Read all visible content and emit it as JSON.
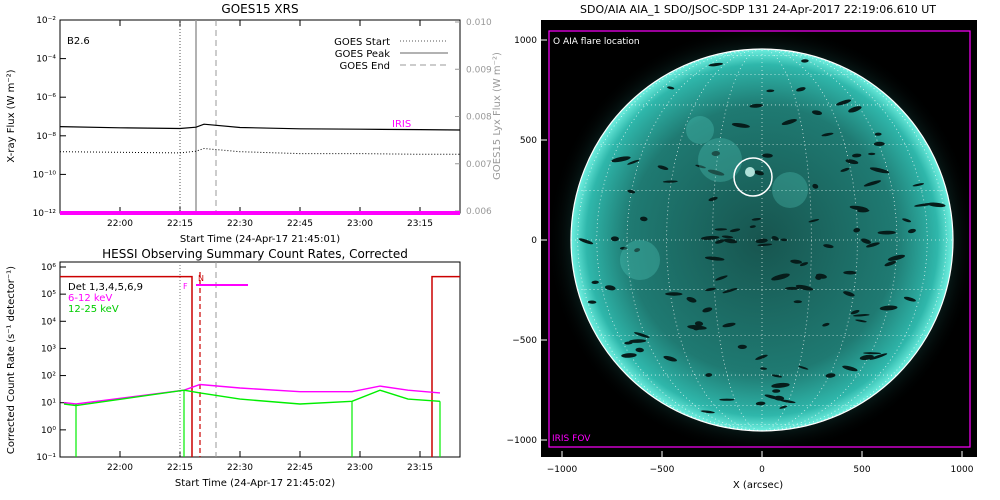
{
  "goes": {
    "title": "GOES15 XRS",
    "class_label": "B2.6",
    "ylabel": "X-ray Flux (W m⁻²)",
    "y2label": "GOES15 Lyx Flux (W m⁻²)",
    "xlabel": "Start Time (24-Apr-17 21:45:01)",
    "legend": [
      "GOES Start",
      "GOES Peak",
      "GOES End"
    ],
    "iris_label": "IRIS",
    "yticks": [
      "10⁻²",
      "10⁻⁴",
      "10⁻⁶",
      "10⁻⁸",
      "10⁻¹⁰",
      "10⁻¹²"
    ],
    "y2ticks": [
      "0.010",
      "0.009",
      "0.008",
      "0.007",
      "0.006"
    ],
    "xticks": [
      "22:00",
      "22:15",
      "22:30",
      "22:45",
      "23:00",
      "23:15"
    ]
  },
  "hessi": {
    "title": "HESSI Observing Summary Count Rates, Corrected",
    "ylabel": "Corrected Count Rate (s⁻¹ detector⁻¹)",
    "xlabel": "Start Time (24-Apr-17 21:45:02)",
    "det_label": "Det 1,3,4,5,6,9",
    "band1": "6-12 keV",
    "band2": "12-25 keV",
    "flag_n": "N",
    "flag_f": "F",
    "yticks": [
      "10⁶",
      "10⁵",
      "10⁴",
      "10³",
      "10²",
      "10¹",
      "10⁰",
      "10⁻¹"
    ],
    "xticks": [
      "22:00",
      "22:15",
      "22:30",
      "22:45",
      "23:00",
      "23:15"
    ]
  },
  "aia": {
    "title": "SDO/AIA AIA_1 SDO/JSOC-SDP 131 24-Apr-2017 22:19:06.610 UT",
    "flare_label": "O AIA flare location",
    "fov_label": "IRIS FOV",
    "xlabel": "X (arcsec)",
    "xticks": [
      "−1000",
      "−500",
      "0",
      "500",
      "1000"
    ],
    "yticks": [
      "1000",
      "500",
      "0",
      "−500",
      "−1000"
    ]
  },
  "colors": {
    "magenta": "#ff00ff",
    "green": "#00ee00",
    "red": "#cc0000",
    "gray": "#999999",
    "disk": "#1fa39a"
  },
  "chart_data": [
    {
      "type": "line",
      "title": "GOES15 XRS",
      "xlabel": "Start Time (24-Apr-17 21:45:01)",
      "ylabel": "X-ray Flux (W m-2)",
      "y2label": "GOES15 Lyx Flux (W m-2)",
      "yscale": "log",
      "ylim": [
        1e-12,
        0.01
      ],
      "y2lim": [
        0.006,
        0.01
      ],
      "xlim": [
        "21:45",
        "23:25"
      ],
      "x": [
        "21:45",
        "22:00",
        "22:15",
        "22:19",
        "22:21",
        "22:30",
        "22:45",
        "23:00",
        "23:15",
        "23:25"
      ],
      "series": [
        {
          "name": "",
          "values": [
            3e-08,
            2.6e-08,
            2.4e-08,
            2.8e-08,
            4e-08,
            2.7e-08,
            2.3e-08,
            2.2e-08,
            2.1e-08,
            2e-08
          ]
        },
        {
          "name": "",
          "values": [
            1.5e-09,
            1.4e-09,
            1.3e-09,
            1.6e-09,
            2.2e-09,
            1.5e-09,
            1.2e-09,
            1.2e-09,
            1.1e-09,
            1.1e-09
          ]
        },
        {
          "name": "IRIS",
          "values": [
            1e-12,
            1e-12,
            1e-12,
            1e-12,
            1e-12,
            1e-12,
            1e-12,
            1e-12,
            1e-12,
            1e-12
          ]
        }
      ],
      "vlines": {
        "GOES Start": "22:15",
        "GOES Peak": "22:19",
        "GOES End": "22:24"
      },
      "grid": false
    },
    {
      "type": "line",
      "title": "HESSI Observing Summary Count Rates, Corrected",
      "xlabel": "Start Time (24-Apr-17 21:45:02)",
      "ylabel": "Corrected Count Rate (s-1 detector-1)",
      "yscale": "log",
      "ylim": [
        0.1,
        1000000
      ],
      "xlim": [
        "21:45",
        "23:25"
      ],
      "x": [
        "21:46",
        "21:49",
        "22:16",
        "22:20",
        "22:30",
        "22:45",
        "22:58",
        "23:05",
        "23:12",
        "23:20"
      ],
      "series": [
        {
          "name": "6-12 keV",
          "values": [
            9,
            8,
            25,
            40,
            30,
            22,
            22,
            35,
            25,
            20
          ]
        },
        {
          "name": "12-25 keV",
          "values": [
            8,
            7,
            25,
            20,
            12,
            8,
            10,
            25,
            12,
            10
          ]
        }
      ],
      "attenuator": {
        "high_value": 300000,
        "from": "21:45",
        "to": "22:18",
        "resume": "23:18"
      },
      "grid": false
    }
  ]
}
